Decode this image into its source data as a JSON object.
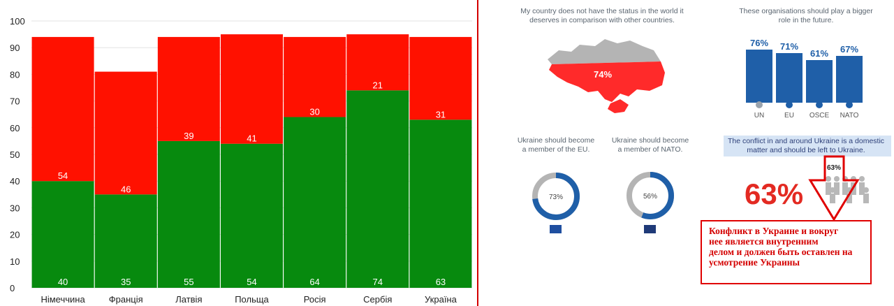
{
  "chart_data": {
    "type": "bar",
    "stacked": true,
    "categories": [
      "Німеччина",
      "Франція",
      "Латвія",
      "Польща",
      "Росія",
      "Сербія",
      "Україна"
    ],
    "series": [
      {
        "values": [
          40,
          35,
          55,
          54,
          64,
          74,
          63
        ],
        "color": "#078a0e"
      },
      {
        "values": [
          54,
          46,
          39,
          41,
          30,
          21,
          31
        ],
        "color": "#ff1100"
      }
    ],
    "y_ticks": [
      0,
      10,
      20,
      30,
      40,
      50,
      60,
      70,
      80,
      90,
      100
    ],
    "ylim": [
      0,
      100
    ],
    "grid": true,
    "legend": "none"
  },
  "infographic": {
    "status_text": [
      "My country does not have the status in the world it",
      "deserves in comparison with other countries."
    ],
    "status_value": "74%",
    "orgs_text": [
      "These organisations should play a bigger",
      "role in the future."
    ],
    "orgs": [
      {
        "value": "76%",
        "label": "UN",
        "level": 76
      },
      {
        "value": "71%",
        "label": "EU",
        "level": 71
      },
      {
        "value": "61%",
        "label": "OSCE",
        "level": 61
      },
      {
        "value": "67%",
        "label": "NATO",
        "level": 67
      }
    ],
    "eu_text": [
      "Ukraine should become",
      "a member of the EU."
    ],
    "eu_value": "73%",
    "eu_fraction": 0.73,
    "nato_text": [
      "Ukraine should become",
      "a member of NATO."
    ],
    "nato_value": "56%",
    "nato_fraction": 0.56,
    "conflict_text": [
      "The conflict in and around Ukraine is a domestic",
      "matter and should be left to Ukraine."
    ],
    "conflict_big": "63%",
    "conflict_small": "63%",
    "russian_note": [
      "Конфликт в Украине и вокруг",
      "нее является внутренним",
      "делом и должен быть оставлен на",
      "усмотрение Украины"
    ],
    "colors": {
      "blue": "#1f5fa8",
      "red": "#ff2a2a",
      "gray": "#b4b4b4",
      "note_red": "#d40000"
    }
  }
}
